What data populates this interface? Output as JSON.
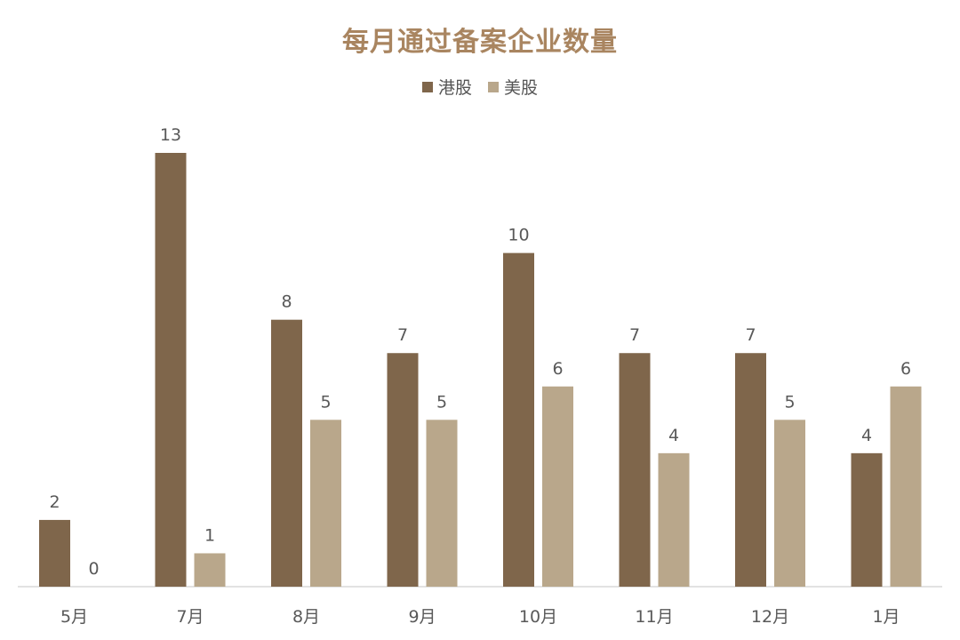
{
  "chart_data": {
    "type": "bar",
    "title": "每月通过备案企业数量",
    "categories": [
      "5月",
      "7月",
      "8月",
      "9月",
      "10月",
      "11月",
      "12月",
      "1月"
    ],
    "series": [
      {
        "name": "港股",
        "color": "#7f664b",
        "values": [
          2,
          13,
          8,
          7,
          10,
          7,
          7,
          4
        ]
      },
      {
        "name": "美股",
        "color": "#b9a78b",
        "values": [
          0,
          1,
          5,
          5,
          6,
          4,
          5,
          6
        ]
      }
    ],
    "ylim": [
      0,
      13
    ],
    "grid": false,
    "legend_position": "top-center",
    "axis_color": "#d9d9d9",
    "label_color": "#595959"
  }
}
